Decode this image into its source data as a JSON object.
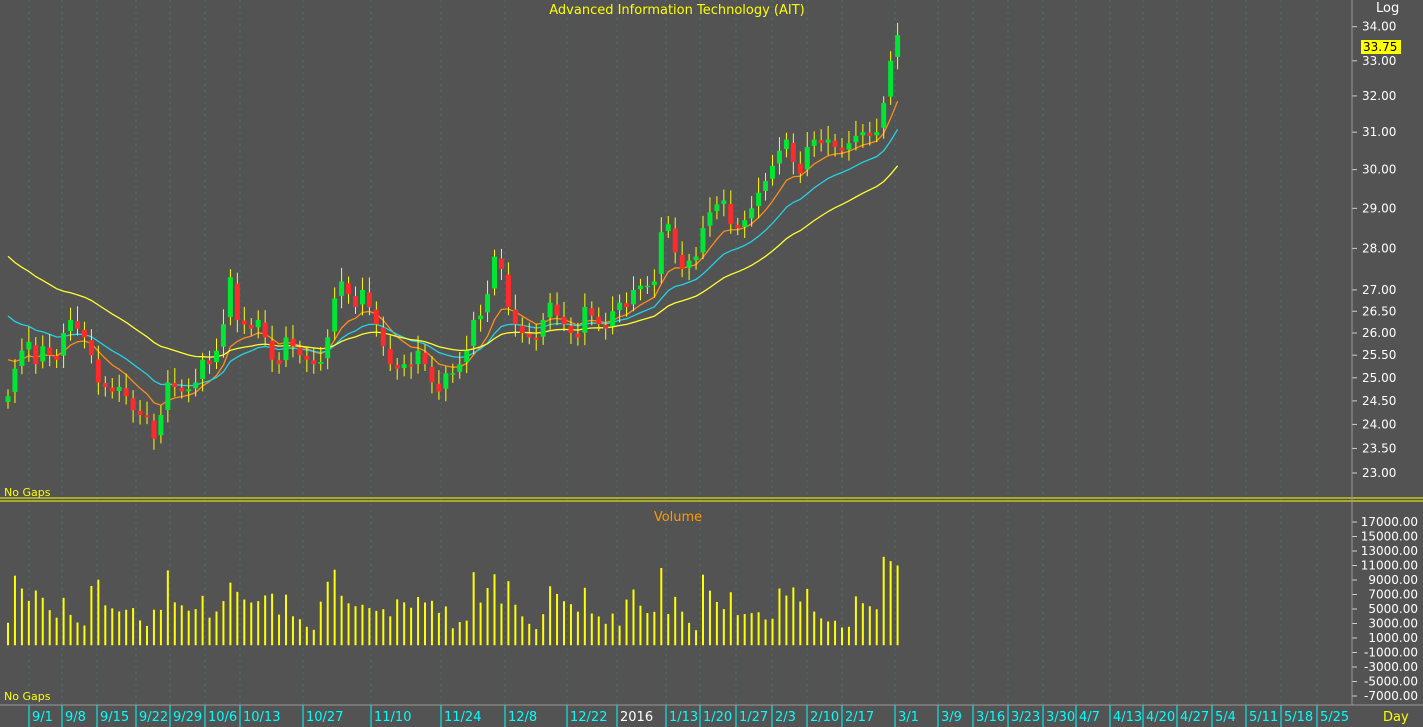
{
  "chart_data": {
    "type": "candlestick",
    "title": "Advanced Information Technology (AIT)",
    "scale_label": "Log",
    "last_price": "33.75",
    "price_note": "No Gaps",
    "volume_title": "Volume",
    "volume_note": "No Gaps",
    "period_label": "Day",
    "price_ticks": [
      "34.00",
      "33.00",
      "32.00",
      "31.00",
      "30.00",
      "29.00",
      "28.00",
      "27.00",
      "26.50",
      "26.00",
      "25.50",
      "25.00",
      "24.50",
      "24.00",
      "23.50",
      "23.00"
    ],
    "volume_ticks": [
      "17000.00",
      "15000.00",
      "13000.00",
      "11000.00",
      "9000.00",
      "7000.00",
      "5000.00",
      "3000.00",
      "1000.00",
      "-1000.00",
      "-3000.00",
      "-5000.00",
      "-7000.00"
    ],
    "date_ticks": [
      "9/1",
      "9/8",
      "9/15",
      "9/22",
      "9/29",
      "10/6",
      "10/13",
      "10/27",
      "11/10",
      "11/24",
      "12/8",
      "12/22",
      "2016",
      "1/13",
      "1/20",
      "1/27",
      "2/3",
      "2/10",
      "2/17",
      "3/1",
      "3/9",
      "3/16",
      "3/23",
      "3/30",
      "4/7",
      "4/13",
      "4/20",
      "4/27",
      "5/4",
      "5/11",
      "5/18",
      "5/25"
    ],
    "closes": [
      24.6,
      25.2,
      25.6,
      25.8,
      25.3,
      25.7,
      25.5,
      25.4,
      26,
      26.3,
      26.1,
      25.9,
      25.5,
      24.9,
      24.8,
      24.7,
      24.8,
      24.6,
      24.3,
      24.2,
      24.15,
      23.7,
      24.2,
      24.9,
      24.8,
      24.7,
      24.75,
      24.9,
      25.4,
      25.3,
      25.6,
      26.2,
      27.3,
      26.3,
      26.2,
      26.1,
      26.3,
      25.9,
      25.4,
      25.3,
      25.9,
      25.7,
      25.5,
      25.4,
      25.3,
      25.35,
      25.9,
      26.8,
      27.2,
      26.9,
      26.6,
      27.0,
      26.6,
      26.2,
      25.7,
      25.3,
      25.2,
      25.3,
      25.25,
      25.6,
      25.3,
      24.9,
      24.7,
      25.1,
      25.1,
      25.3,
      25.6,
      26.3,
      26.4,
      26.9,
      27.8,
      27.5,
      26.6,
      26.2,
      26.0,
      25.9,
      25.85,
      26.3,
      26.7,
      26.4,
      26.2,
      26.0,
      25.9,
      26.6,
      26.4,
      26.2,
      26.1,
      26.5,
      26.7,
      26.6,
      27.0,
      27.1,
      27.1,
      27.2,
      28.4,
      28.6,
      27.9,
      27.5,
      27.7,
      27.8,
      28.5,
      28.9,
      29.1,
      29.2,
      28.6,
      28.5,
      28.7,
      29.0,
      29.4,
      29.7,
      30.1,
      30.5,
      30.8,
      30.2,
      29.9,
      30.6,
      30.8,
      30.7,
      30.8,
      30.6,
      30.5,
      30.7,
      30.9,
      31.0,
      30.9,
      31.0,
      31.8,
      33.0,
      33.75
    ]
  },
  "colors": {
    "background": "#535353",
    "up": "#00e632",
    "down": "#ff2a2a",
    "axis_text": "#ffffff",
    "title": "#ffff00",
    "volume_title": "#ff9a00",
    "date_text": "#00ffff",
    "ma_orange": "#ff8c1a",
    "ma_cyan": "#22d3e6",
    "ma_yellow": "#ffff30",
    "volume_bar": "#ffff00"
  }
}
